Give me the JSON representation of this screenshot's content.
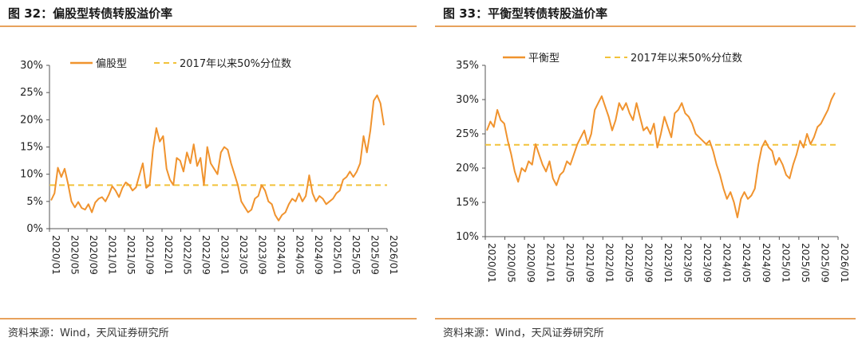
{
  "chart_data": [
    {
      "type": "line",
      "title": "图 32：偏股型转债转股溢价率",
      "source": "资料来源：Wind，天风证券研究所",
      "ylim": [
        0,
        30
      ],
      "yticks": [
        "0%",
        "5%",
        "10%",
        "15%",
        "20%",
        "25%",
        "30%"
      ],
      "xticks": [
        "2020/01",
        "2020/05",
        "2020/09",
        "2021/01",
        "2021/05",
        "2021/09",
        "2022/01",
        "2022/05",
        "2022/09",
        "2023/01",
        "2023/05",
        "2023/09",
        "2024/01",
        "2024/05",
        "2024/09",
        "2025/01",
        "2025/05",
        "2025/09",
        "2026/01"
      ],
      "legend": [
        "偏股型",
        "2017年以来50%分位数"
      ],
      "colors": {
        "series": "#f0932e",
        "median": "#f2c23a"
      },
      "median": 8.0,
      "series": [
        {
          "name": "偏股型",
          "values": [
            5.2,
            6.5,
            11.2,
            9.5,
            11.0,
            8.2,
            5.0,
            3.9,
            4.9,
            3.8,
            3.5,
            4.5,
            3.0,
            4.8,
            5.5,
            5.8,
            5.0,
            6.2,
            7.8,
            7.0,
            5.8,
            7.5,
            8.5,
            8.0,
            7.0,
            7.6,
            9.8,
            12.0,
            7.5,
            8.0,
            14.5,
            18.5,
            16.0,
            17.0,
            11.0,
            9.0,
            8.0,
            13.0,
            12.5,
            10.5,
            14.0,
            12.0,
            15.5,
            11.5,
            13.0,
            8.0,
            15.0,
            12.0,
            11.0,
            10.0,
            14.0,
            15.0,
            14.5,
            12.0,
            10.0,
            8.0,
            5.0,
            4.0,
            3.0,
            3.5,
            5.5,
            6.0,
            8.0,
            7.0,
            5.0,
            4.5,
            2.5,
            1.5,
            2.5,
            3.0,
            4.5,
            5.5,
            5.0,
            6.5,
            5.0,
            6.0,
            9.8,
            6.5,
            5.0,
            6.0,
            5.5,
            4.5,
            5.0,
            5.5,
            6.5,
            7.0,
            9.0,
            9.5,
            10.5,
            9.5,
            10.5,
            12.0,
            17.0,
            14.0,
            18.0,
            23.5,
            24.5,
            23.0,
            19.0
          ]
        }
      ]
    },
    {
      "type": "line",
      "title": "图 33：平衡型转债转股溢价率",
      "source": "资料来源：Wind，天风证券研究所",
      "ylim": [
        10,
        35
      ],
      "yticks": [
        "10%",
        "15%",
        "20%",
        "25%",
        "30%",
        "35%"
      ],
      "xticks": [
        "2020/01",
        "2020/05",
        "2020/09",
        "2021/01",
        "2021/05",
        "2021/09",
        "2022/01",
        "2022/05",
        "2022/09",
        "2023/01",
        "2023/05",
        "2023/09",
        "2024/01",
        "2024/05",
        "2024/09",
        "2025/01",
        "2025/05",
        "2025/09",
        "2026/01"
      ],
      "legend": [
        "平衡型",
        "2017年以来50%分位数"
      ],
      "colors": {
        "series": "#f0932e",
        "median": "#f2c23a"
      },
      "median": 23.4,
      "series": [
        {
          "name": "平衡型",
          "values": [
            25.5,
            26.8,
            26.0,
            28.5,
            27.0,
            26.5,
            24.0,
            22.0,
            19.5,
            18.0,
            20.0,
            19.5,
            21.0,
            20.5,
            23.5,
            22.0,
            20.5,
            19.5,
            21.0,
            18.5,
            17.5,
            19.0,
            19.5,
            21.0,
            20.5,
            22.0,
            23.5,
            24.5,
            25.5,
            23.5,
            25.0,
            28.5,
            29.5,
            30.5,
            29.0,
            27.5,
            25.5,
            27.0,
            29.5,
            28.5,
            29.5,
            28.0,
            27.0,
            29.5,
            27.5,
            25.5,
            26.0,
            25.0,
            26.5,
            23.0,
            25.0,
            27.5,
            26.0,
            24.5,
            28.0,
            28.5,
            29.5,
            28.0,
            27.5,
            26.5,
            25.0,
            24.5,
            24.0,
            23.5,
            24.0,
            22.5,
            20.5,
            19.0,
            17.0,
            15.5,
            16.5,
            15.0,
            12.8,
            15.5,
            16.5,
            15.5,
            16.0,
            17.0,
            20.5,
            23.0,
            24.0,
            23.0,
            22.5,
            20.5,
            21.5,
            20.5,
            19.0,
            18.5,
            20.5,
            22.0,
            24.0,
            23.0,
            25.0,
            23.5,
            24.5,
            26.0,
            26.5,
            27.5,
            28.5,
            30.0,
            31.0
          ]
        }
      ]
    }
  ]
}
